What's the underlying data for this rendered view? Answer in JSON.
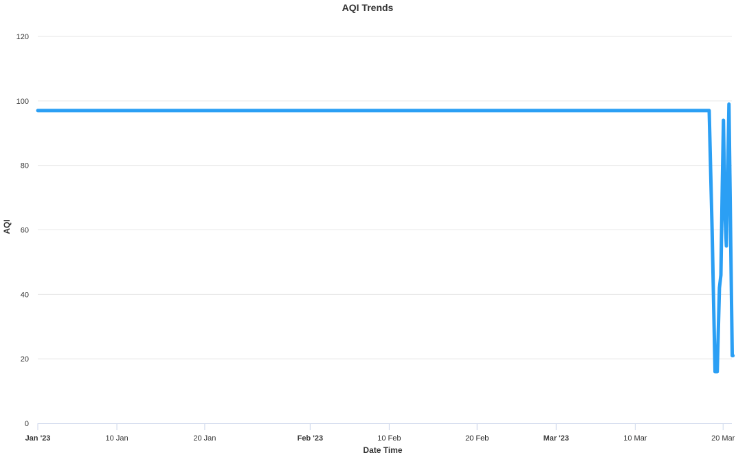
{
  "chart_data": {
    "type": "line",
    "title": "AQI Trends",
    "xlabel": "Date Time",
    "ylabel": "AQI",
    "ylim": [
      0,
      120
    ],
    "xlim": [
      "2023-01-01",
      "2023-03-21"
    ],
    "grid": true,
    "legend": "none",
    "colors": {
      "series": "#2b9ff4",
      "grid": "#e6e6e6",
      "axis": "#ccd6eb",
      "text": "#333333"
    },
    "y_ticks": [
      0,
      20,
      40,
      60,
      80,
      100,
      120
    ],
    "x_ticks": [
      {
        "date": "2023-01-01",
        "label": "Jan '23",
        "major": true
      },
      {
        "date": "2023-01-10",
        "label": "10 Jan",
        "major": false
      },
      {
        "date": "2023-01-20",
        "label": "20 Jan",
        "major": false
      },
      {
        "date": "2023-02-01",
        "label": "Feb '23",
        "major": true
      },
      {
        "date": "2023-02-10",
        "label": "10 Feb",
        "major": false
      },
      {
        "date": "2023-02-20",
        "label": "20 Feb",
        "major": false
      },
      {
        "date": "2023-03-01",
        "label": "Mar '23",
        "major": true
      },
      {
        "date": "2023-03-10",
        "label": "10 Mar",
        "major": false
      },
      {
        "date": "2023-03-20",
        "label": "20 Mar",
        "major": false
      }
    ],
    "series": [
      {
        "points": [
          [
            "2023-01-01T00:00",
            97
          ],
          [
            "2023-03-18T10:00",
            97
          ],
          [
            "2023-03-18T18:00",
            60
          ],
          [
            "2023-03-19T02:00",
            16
          ],
          [
            "2023-03-19T08:00",
            16
          ],
          [
            "2023-03-19T14:00",
            42
          ],
          [
            "2023-03-19T18:00",
            46
          ],
          [
            "2023-03-19T22:00",
            75
          ],
          [
            "2023-03-20T01:00",
            94
          ],
          [
            "2023-03-20T05:00",
            65
          ],
          [
            "2023-03-20T09:00",
            55
          ],
          [
            "2023-03-20T13:00",
            80
          ],
          [
            "2023-03-20T16:00",
            99
          ],
          [
            "2023-03-20T21:00",
            55
          ],
          [
            "2023-03-21T01:00",
            21
          ],
          [
            "2023-03-21T03:00",
            21
          ]
        ]
      }
    ]
  }
}
